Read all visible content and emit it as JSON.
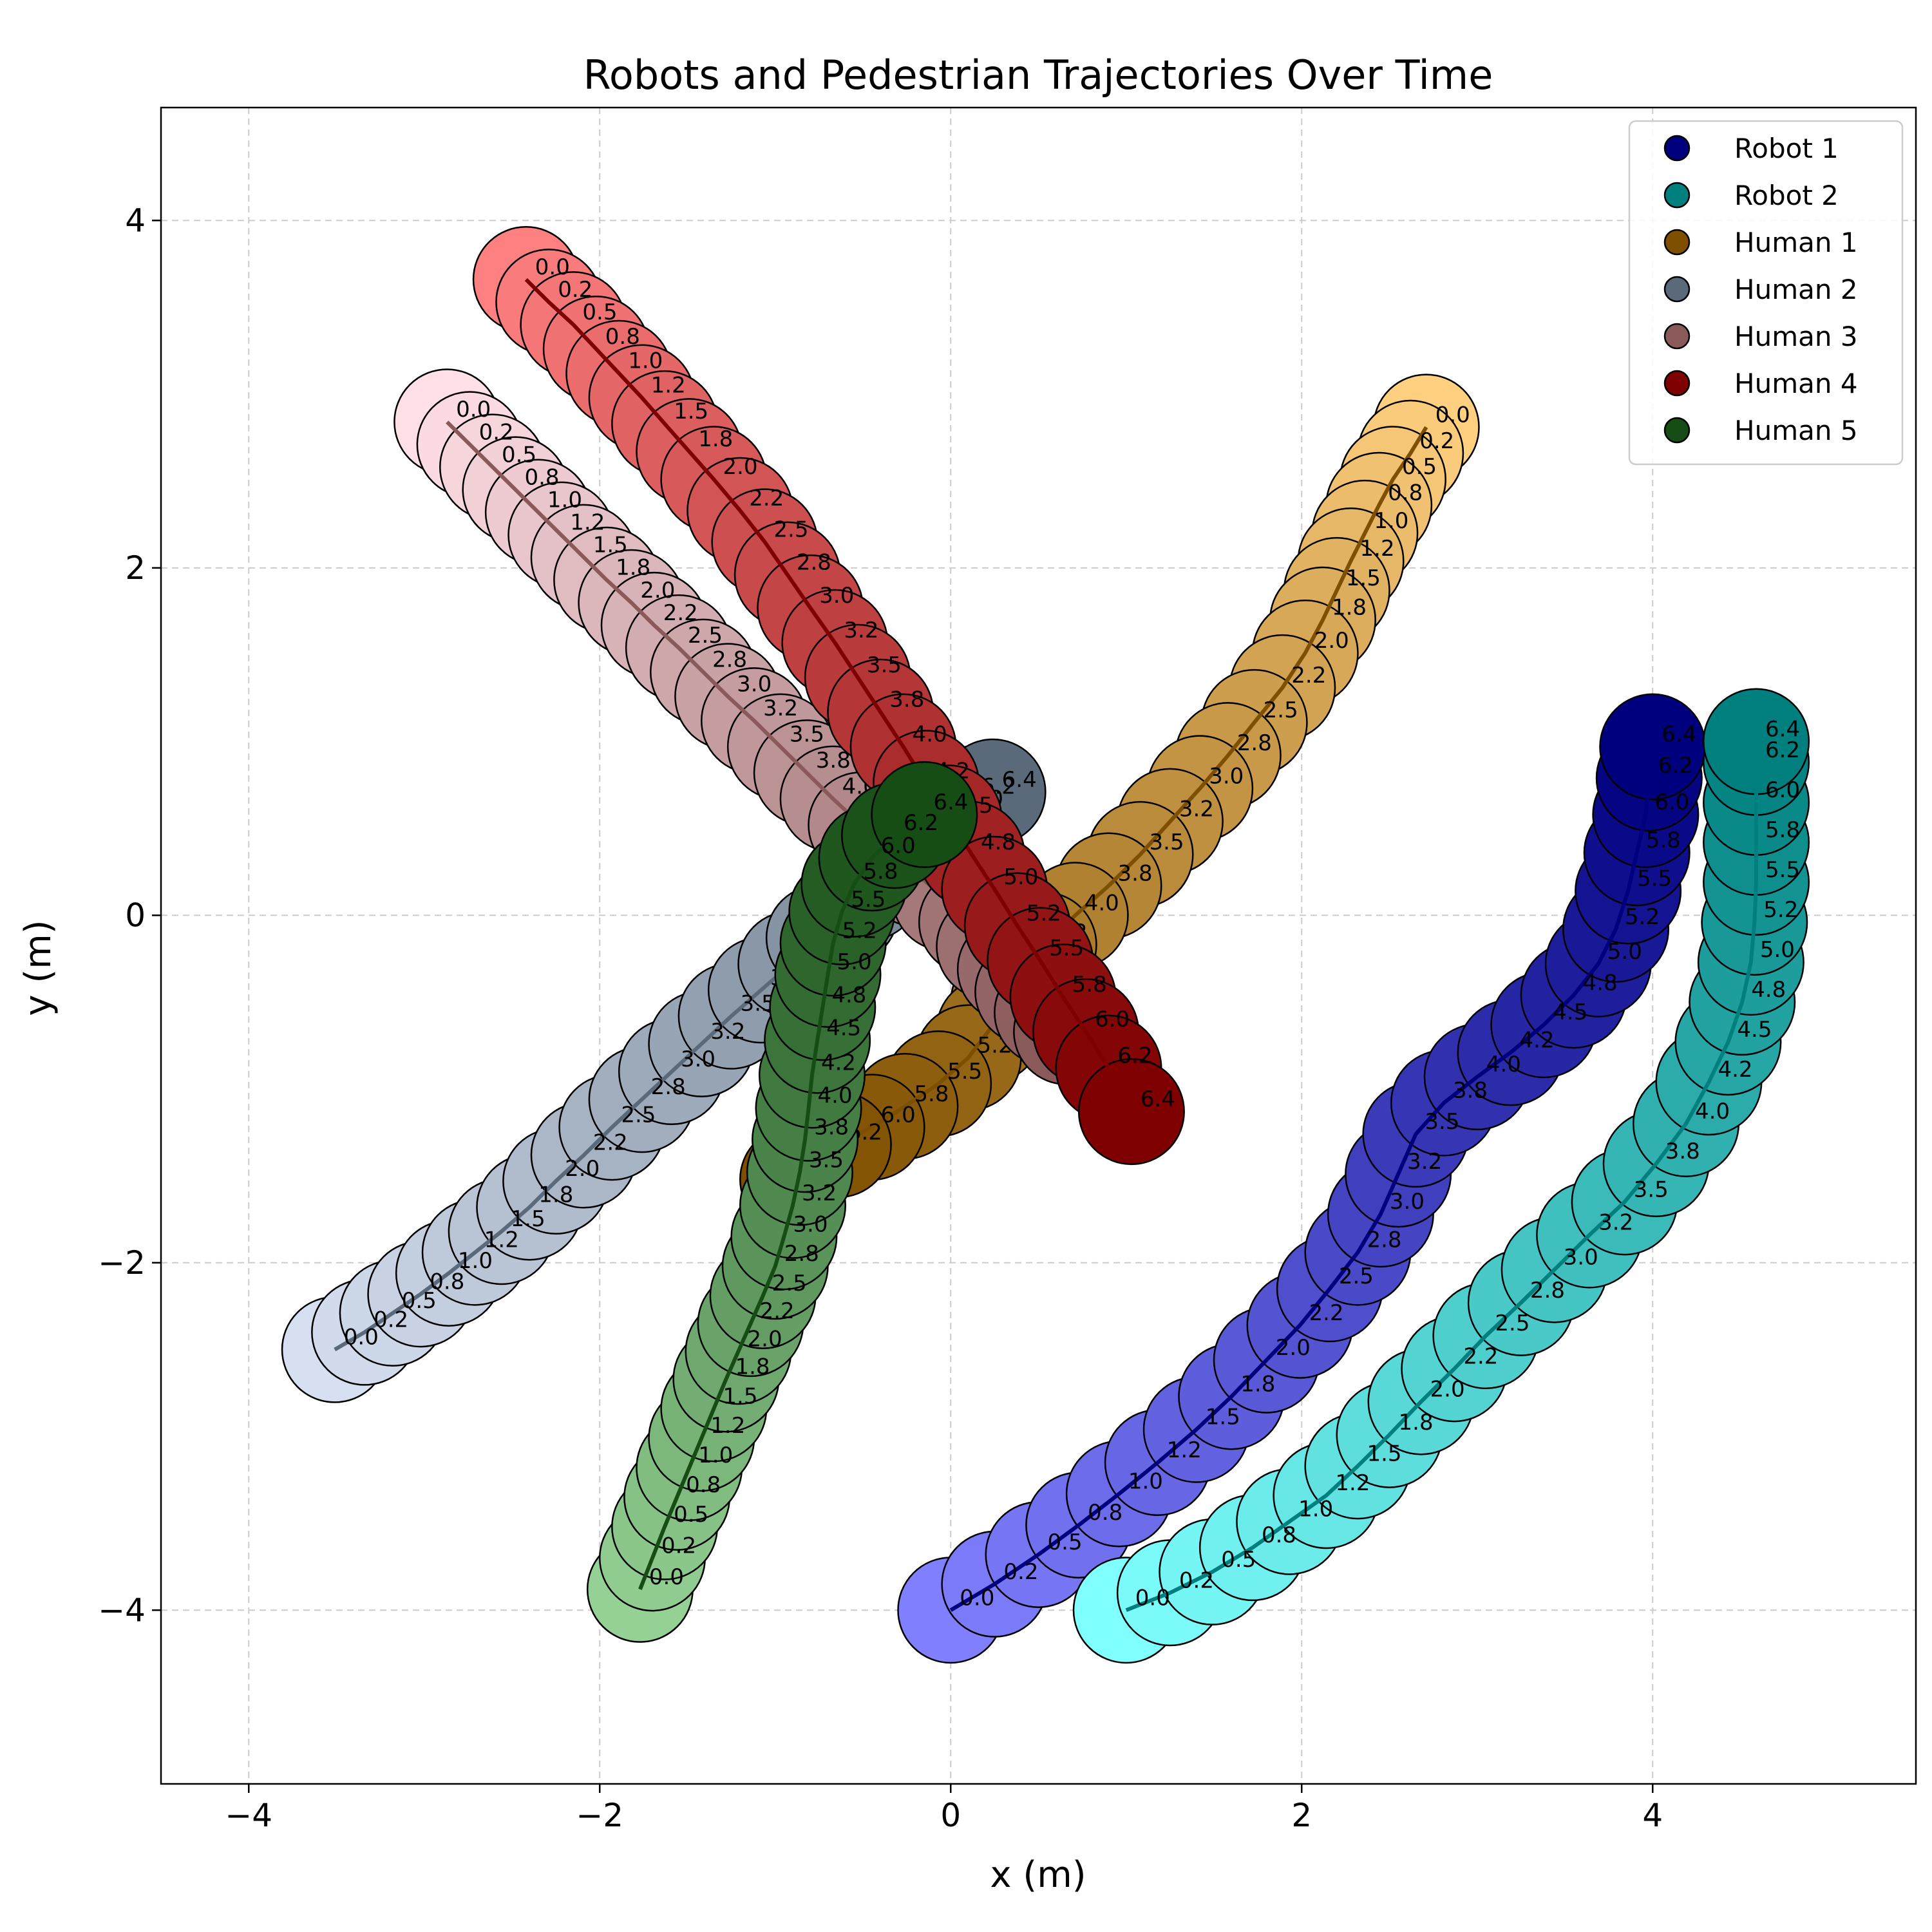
{
  "chart_data": {
    "type": "scatter",
    "title": "Robots and Pedestrian Trajectories Over Time",
    "xlabel": "x (m)",
    "ylabel": "y (m)",
    "xlim": [
      -4.5,
      5.5
    ],
    "ylim": [
      -5.0,
      4.65
    ],
    "xticks": [
      -4,
      -2,
      0,
      2,
      4
    ],
    "yticks": [
      -4,
      -2,
      0,
      2,
      4
    ],
    "grid": true,
    "legend_position": "top-right",
    "marker_radius_m": 0.3,
    "time_labels": [
      "0.0",
      "0.2",
      "0.5",
      "0.8",
      "1.0",
      "1.2",
      "1.5",
      "1.8",
      "2.0",
      "2.2",
      "2.5",
      "2.8",
      "3.0",
      "3.2",
      "3.5",
      "3.8",
      "4.0",
      "4.2",
      "4.5",
      "4.8",
      "5.0",
      "5.2",
      "5.5",
      "5.8",
      "6.0",
      "6.2",
      "6.4"
    ],
    "series": [
      {
        "name": "Robot 1",
        "color": "#00007f",
        "light_color": "#8080ff",
        "x": [
          0.0,
          0.25,
          0.5,
          0.73,
          0.96,
          1.18,
          1.4,
          1.6,
          1.8,
          1.99,
          2.16,
          2.32,
          2.45,
          2.55,
          2.65,
          2.81,
          3.0,
          3.19,
          3.38,
          3.55,
          3.69,
          3.79,
          3.86,
          3.91,
          3.96,
          3.98,
          4.0
        ],
        "y": [
          -4.0,
          -3.85,
          -3.68,
          -3.51,
          -3.33,
          -3.15,
          -2.96,
          -2.77,
          -2.56,
          -2.36,
          -2.15,
          -1.94,
          -1.72,
          -1.49,
          -1.26,
          -1.08,
          -0.93,
          -0.79,
          -0.63,
          -0.46,
          -0.28,
          -0.08,
          0.14,
          0.36,
          0.58,
          0.79,
          0.97
        ]
      },
      {
        "name": "Robot 2",
        "color": "#007f7f",
        "light_color": "#80ffff",
        "x": [
          1.0,
          1.25,
          1.49,
          1.72,
          1.93,
          2.14,
          2.32,
          2.5,
          2.68,
          2.87,
          3.05,
          3.25,
          3.44,
          3.64,
          3.84,
          4.02,
          4.19,
          4.32,
          4.43,
          4.51,
          4.56,
          4.58,
          4.59,
          4.59,
          4.59,
          4.59,
          4.59
        ],
        "y": [
          -4.0,
          -3.9,
          -3.78,
          -3.64,
          -3.49,
          -3.34,
          -3.17,
          -2.99,
          -2.8,
          -2.61,
          -2.42,
          -2.23,
          -2.04,
          -1.84,
          -1.65,
          -1.43,
          -1.2,
          -0.96,
          -0.73,
          -0.5,
          -0.27,
          -0.04,
          0.19,
          0.42,
          0.65,
          0.88,
          1.0
        ]
      },
      {
        "name": "Human 1",
        "color": "#7f4f00",
        "light_color": "#ffd080",
        "x": [
          2.71,
          2.62,
          2.52,
          2.44,
          2.36,
          2.28,
          2.2,
          2.12,
          2.02,
          1.89,
          1.73,
          1.58,
          1.42,
          1.25,
          1.08,
          0.9,
          0.71,
          0.53,
          0.39,
          0.3,
          0.22,
          0.1,
          -0.07,
          -0.26,
          -0.45,
          -0.64,
          -0.9
        ],
        "y": [
          2.81,
          2.66,
          2.51,
          2.36,
          2.2,
          2.04,
          1.87,
          1.7,
          1.51,
          1.31,
          1.11,
          0.92,
          0.73,
          0.54,
          0.35,
          0.17,
          0.0,
          -0.17,
          -0.34,
          -0.5,
          -0.66,
          -0.82,
          -0.97,
          -1.1,
          -1.22,
          -1.32,
          -1.52
        ]
      },
      {
        "name": "Human 2",
        "color": "#5a6a7a",
        "light_color": "#d6e0f0",
        "x": [
          -3.51,
          -3.34,
          -3.18,
          -3.02,
          -2.86,
          -2.71,
          -2.56,
          -2.4,
          -2.25,
          -2.09,
          -1.93,
          -1.76,
          -1.59,
          -1.42,
          -1.25,
          -1.08,
          -0.91,
          -0.75,
          -0.6,
          -0.47,
          -0.35,
          -0.25,
          -0.15,
          -0.06,
          0.05,
          0.12,
          0.24
        ],
        "y": [
          -2.5,
          -2.4,
          -2.29,
          -2.18,
          -2.06,
          -1.94,
          -1.82,
          -1.68,
          -1.53,
          -1.38,
          -1.22,
          -1.06,
          -0.9,
          -0.74,
          -0.58,
          -0.43,
          -0.28,
          -0.13,
          0.02,
          0.16,
          0.31,
          0.44,
          0.58,
          0.62,
          0.6,
          0.67,
          0.71
        ]
      },
      {
        "name": "Human 3",
        "color": "#8a5a5a",
        "light_color": "#ffe0e6",
        "x": [
          -2.87,
          -2.74,
          -2.61,
          -2.48,
          -2.35,
          -2.22,
          -2.09,
          -1.96,
          -1.82,
          -1.69,
          -1.55,
          -1.41,
          -1.27,
          -1.12,
          -0.97,
          -0.82,
          -0.67,
          -0.51,
          -0.35,
          -0.2,
          -0.03,
          0.12,
          0.22,
          0.34,
          0.44,
          0.55,
          0.66
        ],
        "y": [
          2.84,
          2.71,
          2.58,
          2.45,
          2.32,
          2.19,
          2.06,
          1.93,
          1.8,
          1.67,
          1.54,
          1.4,
          1.26,
          1.12,
          0.97,
          0.82,
          0.67,
          0.52,
          0.38,
          0.24,
          0.1,
          -0.04,
          -0.18,
          -0.31,
          -0.44,
          -0.56,
          -0.67
        ]
      },
      {
        "name": "Human 4",
        "color": "#7f0000",
        "light_color": "#ff8080",
        "x": [
          -2.42,
          -2.29,
          -2.15,
          -2.02,
          -1.89,
          -1.76,
          -1.63,
          -1.49,
          -1.35,
          -1.2,
          -1.06,
          -0.93,
          -0.8,
          -0.66,
          -0.53,
          -0.4,
          -0.27,
          -0.14,
          -0.01,
          0.12,
          0.25,
          0.38,
          0.51,
          0.64,
          0.77,
          0.9,
          1.03
        ],
        "y": [
          3.66,
          3.53,
          3.4,
          3.26,
          3.12,
          2.98,
          2.83,
          2.67,
          2.51,
          2.33,
          2.15,
          1.96,
          1.77,
          1.57,
          1.37,
          1.17,
          0.97,
          0.76,
          0.56,
          0.35,
          0.15,
          -0.06,
          -0.26,
          -0.47,
          -0.67,
          -0.88,
          -1.13
        ]
      },
      {
        "name": "Human 5",
        "color": "#154d15",
        "light_color": "#95d095",
        "x": [
          -1.77,
          -1.7,
          -1.63,
          -1.56,
          -1.49,
          -1.42,
          -1.35,
          -1.28,
          -1.21,
          -1.14,
          -1.07,
          -1.0,
          -0.95,
          -0.9,
          -0.86,
          -0.83,
          -0.81,
          -0.79,
          -0.76,
          -0.73,
          -0.7,
          -0.67,
          -0.62,
          -0.55,
          -0.45,
          -0.32,
          -0.15
        ],
        "y": [
          -3.88,
          -3.7,
          -3.52,
          -3.35,
          -3.18,
          -3.01,
          -2.84,
          -2.67,
          -2.51,
          -2.35,
          -2.19,
          -2.02,
          -1.85,
          -1.67,
          -1.48,
          -1.29,
          -1.11,
          -0.92,
          -0.72,
          -0.53,
          -0.34,
          -0.16,
          0.02,
          0.18,
          0.33,
          0.46,
          0.58
        ]
      }
    ]
  }
}
